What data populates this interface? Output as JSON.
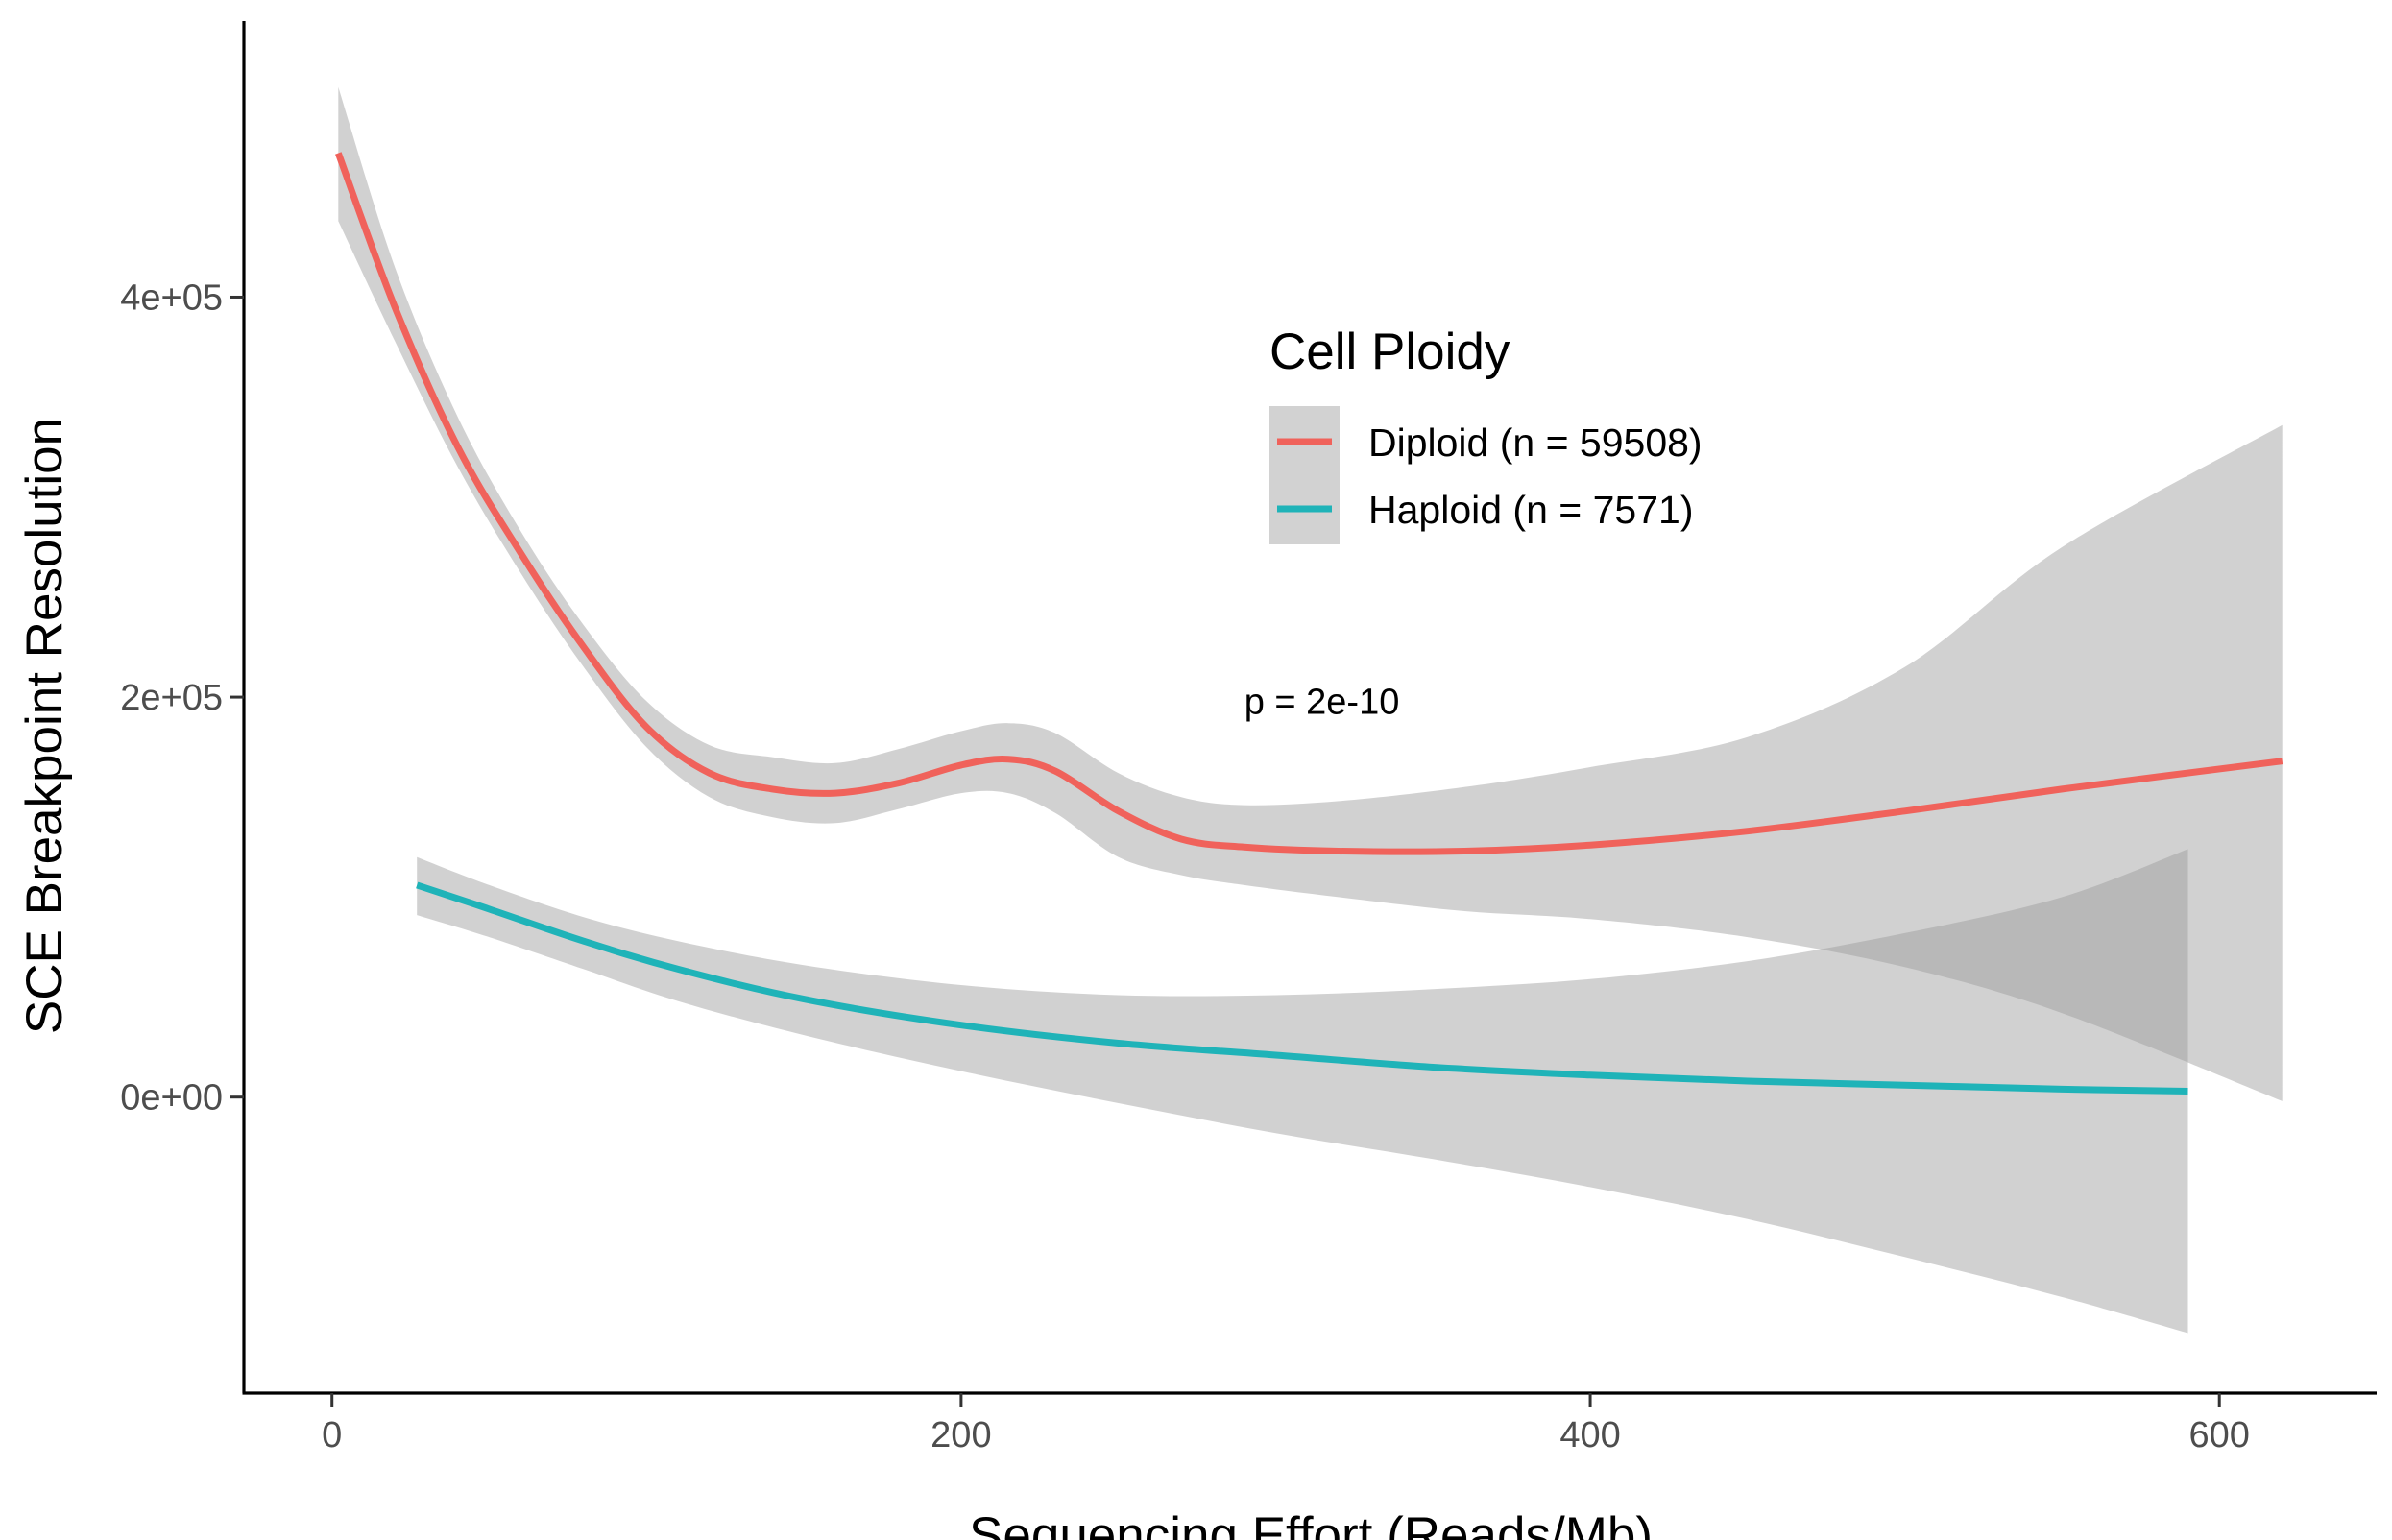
{
  "chart_data": {
    "type": "line",
    "title": "",
    "xlabel": "Sequencing Effort (Reads/Mb)",
    "ylabel": "SCE Breakpoint Resolution",
    "xlim": [
      -28,
      650
    ],
    "ylim": [
      -148000,
      538000
    ],
    "x_ticks": [
      {
        "value": 0,
        "label": "0"
      },
      {
        "value": 200,
        "label": "200"
      },
      {
        "value": 400,
        "label": "400"
      },
      {
        "value": 600,
        "label": "600"
      }
    ],
    "y_ticks": [
      {
        "value": 0,
        "label": "0e+00"
      },
      {
        "value": 200000,
        "label": "2e+05"
      },
      {
        "value": 400000,
        "label": "4e+05"
      }
    ],
    "grid": false,
    "legend": {
      "title": "Cell Ploidy",
      "placement": "top-center",
      "key_fill": "#d2d2d2"
    },
    "annotation": {
      "text": "p = 2e-10",
      "x": 290,
      "y": 198000
    },
    "series": [
      {
        "name": "Diploid (n = 59508)",
        "color": "#f0625b",
        "x": [
          2,
          20,
          40,
          60,
          80,
          100,
          120,
          140,
          160,
          180,
          200,
          215,
          230,
          250,
          270,
          290,
          320,
          360,
          400,
          450,
          500,
          550,
          620
        ],
        "y": [
          472000,
          395000,
          325000,
          272000,
          225000,
          185000,
          162000,
          154000,
          152000,
          157000,
          166000,
          169000,
          163000,
          143000,
          129000,
          125000,
          123000,
          123000,
          126000,
          133000,
          143000,
          154000,
          168000
        ],
        "lower": [
          438000,
          378000,
          315000,
          262000,
          215000,
          175000,
          150000,
          140000,
          137000,
          144000,
          152000,
          152000,
          142000,
          120000,
          111000,
          106000,
          100000,
          93000,
          89000,
          80000,
          65000,
          42000,
          -2000
        ],
        "upper": [
          505000,
          415000,
          340000,
          283000,
          236000,
          198000,
          176000,
          170000,
          167000,
          174000,
          183000,
          187000,
          182000,
          162000,
          150000,
          146000,
          148000,
          155000,
          165000,
          180000,
          215000,
          275000,
          336000
        ]
      },
      {
        "name": "Haploid (n = 7571)",
        "color": "#1fb3b8",
        "x": [
          27,
          50,
          80,
          110,
          150,
          200,
          250,
          300,
          350,
          400,
          450,
          500,
          550,
          590
        ],
        "y": [
          106000,
          94000,
          78000,
          64000,
          49000,
          36000,
          27000,
          21000,
          15000,
          11000,
          8000,
          6000,
          4000,
          3000
        ],
        "lower": [
          91000,
          80000,
          64000,
          48000,
          31000,
          13000,
          -3000,
          -18000,
          -31000,
          -45000,
          -61000,
          -80000,
          -100000,
          -118000
        ],
        "upper": [
          120000,
          106000,
          90000,
          78000,
          66000,
          56000,
          51000,
          51000,
          54000,
          59000,
          68000,
          82000,
          100000,
          124000
        ]
      }
    ]
  }
}
